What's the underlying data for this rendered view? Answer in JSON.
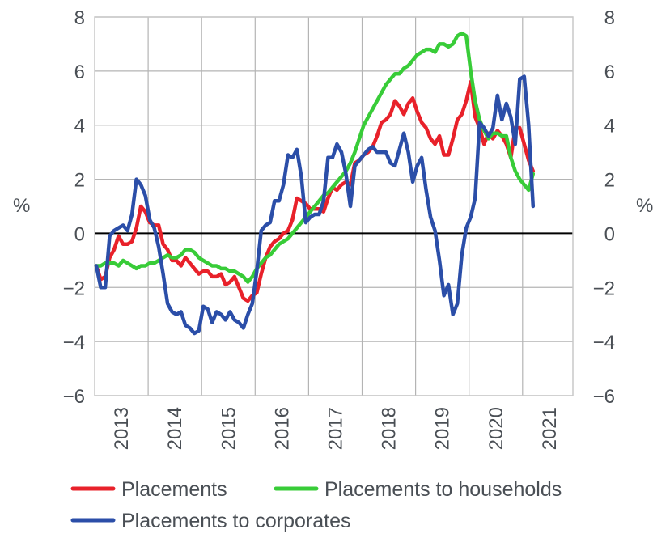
{
  "chart_data": {
    "type": "line",
    "title": "",
    "xlabel": "",
    "ylabel_left": "%",
    "ylabel_right": "%",
    "ylim": [
      -6,
      8
    ],
    "yticks": [
      "8",
      "6",
      "4",
      "2",
      "0",
      "−2",
      "−4",
      "−6"
    ],
    "ytick_values": [
      8,
      6,
      4,
      2,
      0,
      -2,
      -4,
      -6
    ],
    "x_categories": [
      "2013",
      "2014",
      "2015",
      "2016",
      "2017",
      "2018",
      "2019",
      "2020",
      "2021"
    ],
    "x_start": "2013-01",
    "frequency": "monthly",
    "grid": true,
    "zero_line": true,
    "legend_position": "bottom",
    "series": [
      {
        "name": "Placements",
        "color": "#e8212a",
        "values": [
          -1.2,
          -1.7,
          -1.6,
          -0.9,
          -0.6,
          -0.1,
          -0.4,
          -0.4,
          -0.3,
          0.2,
          1.0,
          0.8,
          0.4,
          0.3,
          0.3,
          -0.4,
          -0.6,
          -1.0,
          -1.0,
          -1.2,
          -0.9,
          -1.1,
          -1.3,
          -1.5,
          -1.4,
          -1.4,
          -1.6,
          -1.6,
          -1.5,
          -1.9,
          -1.8,
          -1.6,
          -2.0,
          -2.4,
          -2.5,
          -2.3,
          -2.2,
          -1.5,
          -0.9,
          -0.5,
          -0.3,
          -0.2,
          0.0,
          0.1,
          0.5,
          1.3,
          1.2,
          1.1,
          0.9,
          0.9,
          0.9,
          0.8,
          1.3,
          1.7,
          1.6,
          1.8,
          1.9,
          1.8,
          2.6,
          2.7,
          2.9,
          3.0,
          3.2,
          3.6,
          4.1,
          4.2,
          4.4,
          4.9,
          4.7,
          4.4,
          4.8,
          5.0,
          4.5,
          4.1,
          3.9,
          3.5,
          3.3,
          3.6,
          2.9,
          2.9,
          3.5,
          4.2,
          4.4,
          4.9,
          5.6,
          4.3,
          3.9,
          3.3,
          3.7,
          3.5,
          3.8,
          3.6,
          3.3,
          2.8,
          3.9,
          3.9,
          3.3,
          2.7,
          2.3
        ]
      },
      {
        "name": "Placements to households",
        "color": "#38cc38",
        "values": [
          -1.2,
          -1.2,
          -1.1,
          -1.1,
          -1.1,
          -1.2,
          -1.0,
          -1.1,
          -1.2,
          -1.3,
          -1.2,
          -1.2,
          -1.1,
          -1.1,
          -1.0,
          -0.9,
          -0.8,
          -0.9,
          -0.9,
          -0.8,
          -0.6,
          -0.6,
          -0.7,
          -0.9,
          -1.0,
          -1.1,
          -1.2,
          -1.2,
          -1.3,
          -1.3,
          -1.4,
          -1.4,
          -1.5,
          -1.6,
          -1.8,
          -1.6,
          -1.3,
          -1.1,
          -0.9,
          -0.8,
          -0.6,
          -0.4,
          -0.3,
          -0.2,
          0.0,
          0.2,
          0.4,
          0.6,
          0.8,
          1.0,
          1.2,
          1.4,
          1.5,
          1.7,
          1.9,
          2.1,
          2.3,
          2.6,
          3.0,
          3.5,
          4.0,
          4.3,
          4.6,
          4.9,
          5.2,
          5.5,
          5.7,
          5.9,
          5.9,
          6.1,
          6.2,
          6.4,
          6.6,
          6.7,
          6.8,
          6.8,
          6.7,
          7.0,
          7.0,
          6.9,
          7.0,
          7.3,
          7.4,
          7.3,
          6.0,
          4.9,
          4.2,
          3.8,
          3.5,
          3.7,
          3.7,
          3.6,
          3.6,
          2.8,
          2.3,
          2.0,
          1.8,
          1.6,
          2.2
        ]
      },
      {
        "name": "Placements to corporates",
        "color": "#2b4ea8",
        "values": [
          -1.2,
          -2.0,
          -2.0,
          -0.1,
          0.1,
          0.2,
          0.3,
          0.1,
          0.7,
          2.0,
          1.8,
          1.4,
          0.5,
          0.2,
          -0.5,
          -1.5,
          -2.6,
          -2.9,
          -3.0,
          -2.9,
          -3.4,
          -3.5,
          -3.7,
          -3.6,
          -2.7,
          -2.8,
          -3.3,
          -2.9,
          -3.0,
          -3.2,
          -2.9,
          -3.2,
          -3.3,
          -3.5,
          -3.0,
          -2.6,
          -1.4,
          0.1,
          0.3,
          0.4,
          1.2,
          1.2,
          1.8,
          2.9,
          2.8,
          3.1,
          2.1,
          0.4,
          0.6,
          0.7,
          0.7,
          1.2,
          2.8,
          2.8,
          3.3,
          3.0,
          2.2,
          1.0,
          2.5,
          2.7,
          2.9,
          3.1,
          3.2,
          3.0,
          3.0,
          3.0,
          2.6,
          2.5,
          3.1,
          3.7,
          3.0,
          1.9,
          2.5,
          2.8,
          1.6,
          0.6,
          0.1,
          -1.0,
          -2.3,
          -1.9,
          -3.0,
          -2.6,
          -0.8,
          0.2,
          0.6,
          1.3,
          4.1,
          3.9,
          3.6,
          3.9,
          5.1,
          4.2,
          4.8,
          4.3,
          3.3,
          5.7,
          5.8,
          4.0,
          1.0
        ]
      }
    ]
  }
}
